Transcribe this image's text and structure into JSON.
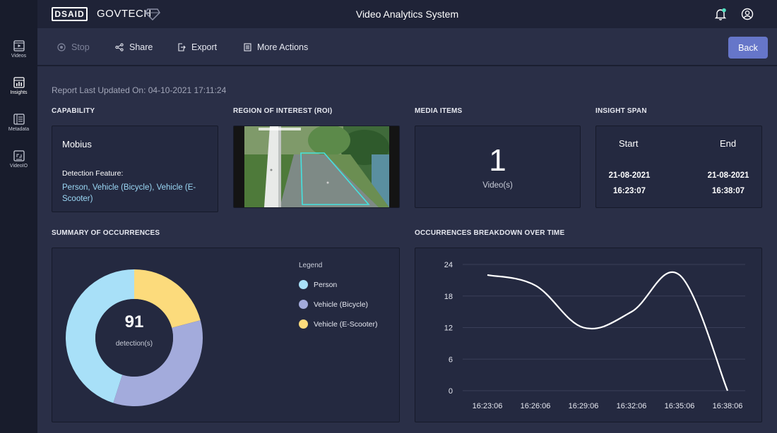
{
  "sidebar": {
    "items": [
      {
        "label": "Videos",
        "icon": "video-icon"
      },
      {
        "label": "Insights",
        "icon": "insights-icon",
        "active": true
      },
      {
        "label": "Metadata",
        "icon": "metadata-icon"
      },
      {
        "label": "VideoIO",
        "icon": "videoio-icon"
      }
    ]
  },
  "header": {
    "logo_left": "DSAID",
    "logo_right": "GOVTECH",
    "title": "Video Analytics System"
  },
  "toolbar": {
    "stop": "Stop",
    "share": "Share",
    "export": "Export",
    "more": "More Actions",
    "back": "Back"
  },
  "report": {
    "updated": "Report Last Updated On: 04-10-2021 17:11:24"
  },
  "capability": {
    "section": "CAPABILITY",
    "name": "Mobius",
    "feature_label": "Detection Feature:",
    "features": "Person, Vehicle (Bicycle), Vehicle (E-Scooter)"
  },
  "roi": {
    "section": "REGION OF INTEREST (ROI)"
  },
  "media": {
    "section": "MEDIA ITEMS",
    "count": "1",
    "unit": "Video(s)"
  },
  "span": {
    "section": "INSIGHT SPAN",
    "start_label": "Start",
    "end_label": "End",
    "start_date": "21-08-2021",
    "start_time": "16:23:07",
    "end_date": "21-08-2021",
    "end_time": "16:38:07"
  },
  "summary": {
    "section": "SUMMARY OF OCCURRENCES",
    "total": "91",
    "total_label": "detection(s)",
    "legend_title": "Legend"
  },
  "breakdown": {
    "section": "OCCURRENCES BREAKDOWN OVER TIME"
  },
  "colors": {
    "person": "#a8e0f8",
    "bicycle": "#a3abdc",
    "escooter": "#fcdb7c",
    "accent": "#6676c9"
  },
  "chart_data": [
    {
      "type": "pie",
      "donut": true,
      "categories": [
        "Person",
        "Vehicle (Bicycle)",
        "Vehicle (E-Scooter)"
      ],
      "values": [
        41,
        31,
        19
      ],
      "legend_position": "right"
    },
    {
      "type": "line",
      "x": [
        "16:23:06",
        "16:26:06",
        "16:29:06",
        "16:32:06",
        "16:35:06",
        "16:38:06"
      ],
      "yticks": [
        0,
        6,
        12,
        18,
        24
      ],
      "ylim": [
        0,
        24
      ],
      "series": [
        {
          "values": [
            22,
            20,
            12,
            15,
            22,
            0
          ]
        }
      ],
      "grid": true
    }
  ]
}
